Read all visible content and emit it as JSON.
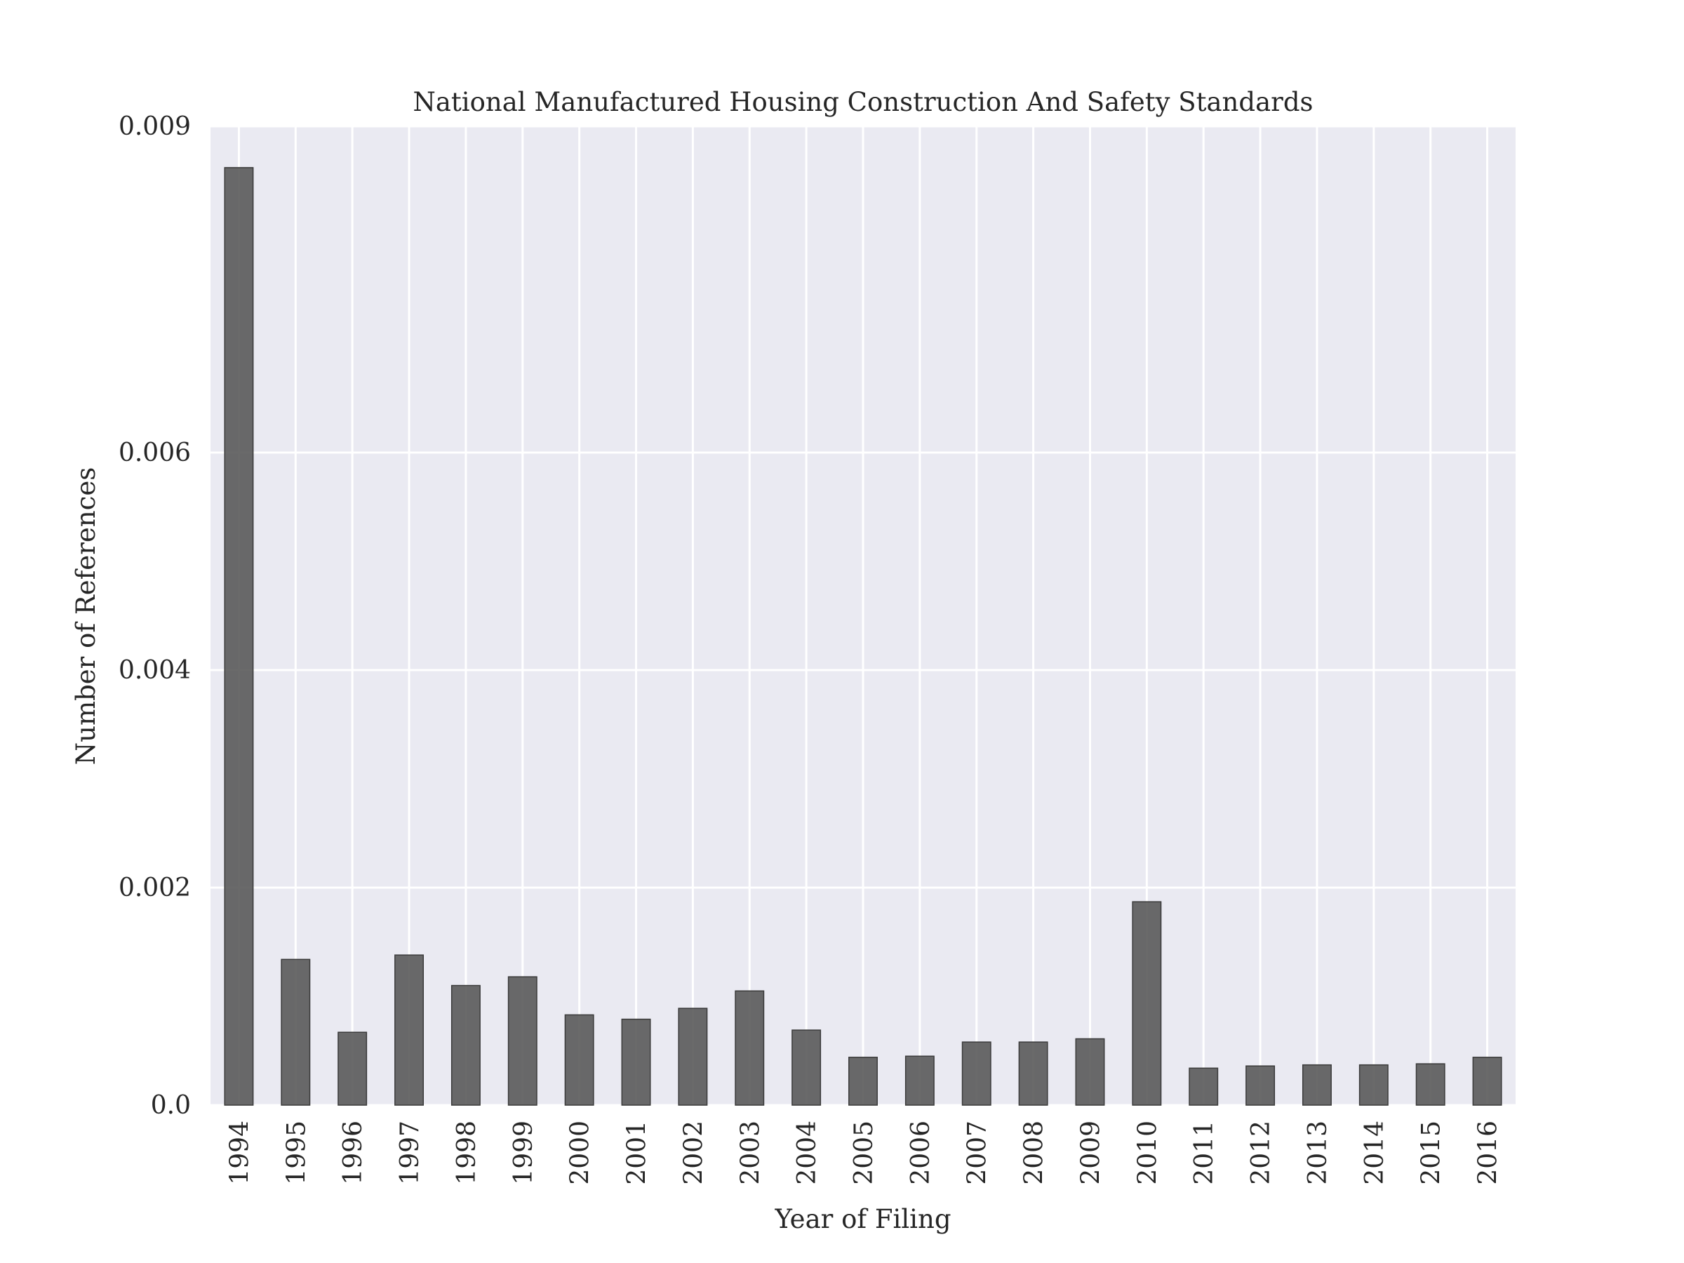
{
  "chart_data": {
    "type": "bar",
    "title": "National Manufactured Housing Construction And Safety Standards",
    "xlabel": "Year of Filing",
    "ylabel": "Number of References",
    "categories": [
      "1994",
      "1995",
      "1996",
      "1997",
      "1998",
      "1999",
      "2000",
      "2001",
      "2002",
      "2003",
      "2004",
      "2005",
      "2006",
      "2007",
      "2008",
      "2009",
      "2010",
      "2011",
      "2012",
      "2013",
      "2014",
      "2015",
      "2016"
    ],
    "values": [
      0.00862,
      0.00134,
      0.00067,
      0.00138,
      0.0011,
      0.00118,
      0.00083,
      0.00079,
      0.00089,
      0.00105,
      0.00069,
      0.00044,
      0.00045,
      0.00058,
      0.00058,
      0.00061,
      0.00187,
      0.00034,
      0.00036,
      0.00037,
      0.00037,
      0.00038,
      0.00044
    ],
    "yticks": [
      0.0,
      0.002,
      0.004,
      0.006,
      0.009
    ],
    "ytick_labels": [
      "0.0",
      "0.002",
      "0.004",
      "0.006",
      "0.009"
    ],
    "ylim": [
      0,
      0.009
    ],
    "grid": true,
    "colors": {
      "bar": "#555555",
      "plot_background": "#eaeaf2",
      "grid": "#ffffff",
      "text": "#262626"
    }
  }
}
